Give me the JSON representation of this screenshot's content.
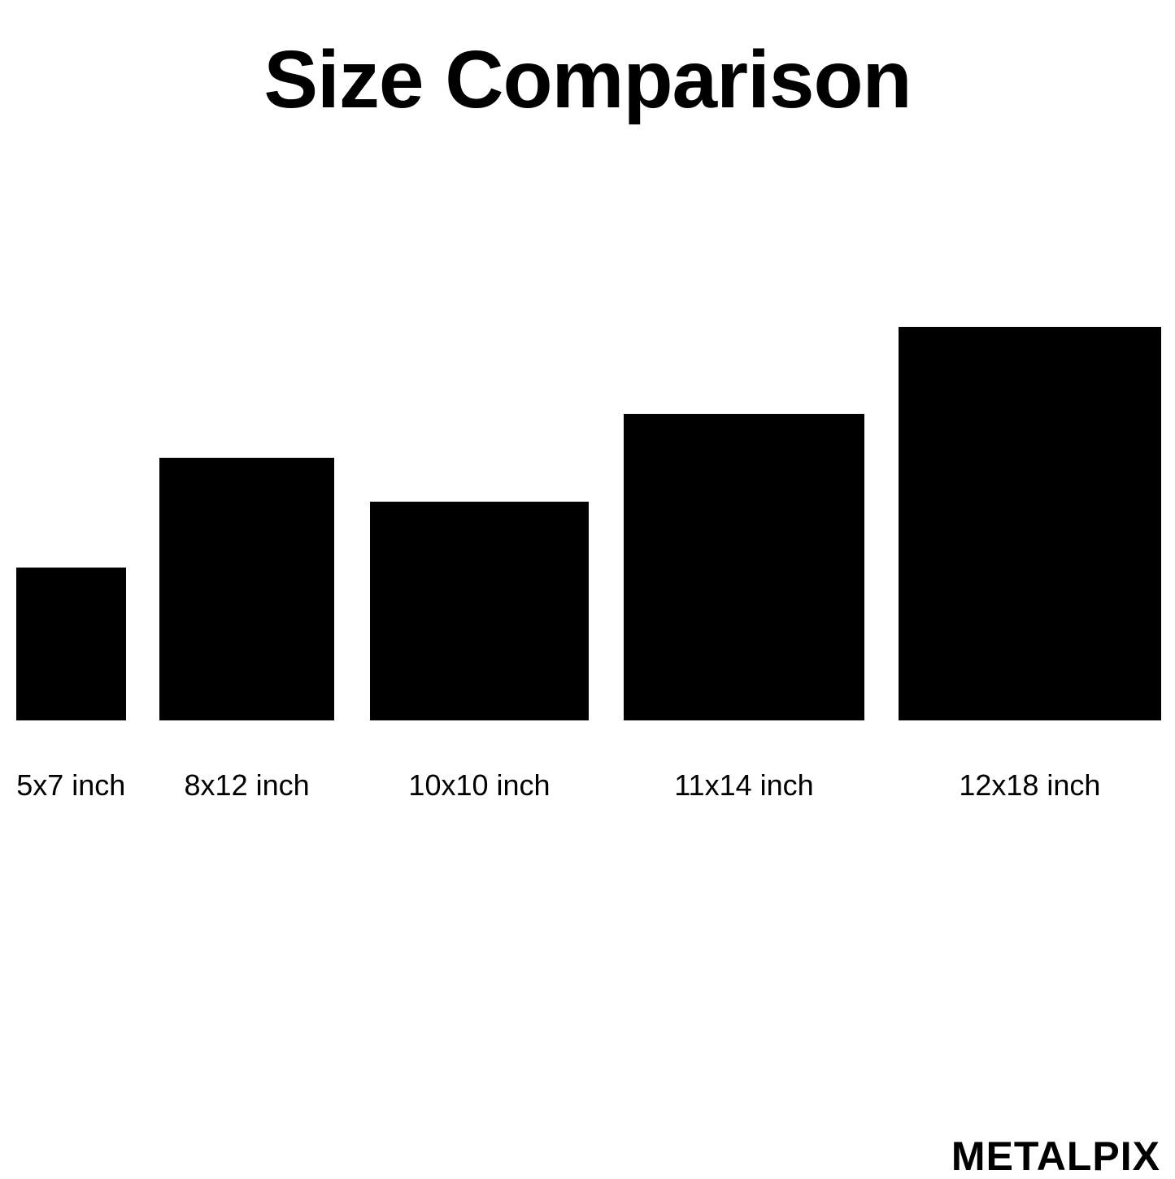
{
  "title": "Size Comparison",
  "sizes": [
    {
      "label": "5x7 inch",
      "width_in": 5,
      "height_in": 7
    },
    {
      "label": "8x12 inch",
      "width_in": 8,
      "height_in": 12
    },
    {
      "label": "10x10 inch",
      "width_in": 10,
      "height_in": 10
    },
    {
      "label": "11x14 inch",
      "width_in": 11,
      "height_in": 14
    },
    {
      "label": "12x18 inch",
      "width_in": 12,
      "height_in": 18
    }
  ],
  "logo": "METALPIX",
  "colors": {
    "shape": "#000000",
    "background": "#ffffff",
    "text": "#000000"
  }
}
